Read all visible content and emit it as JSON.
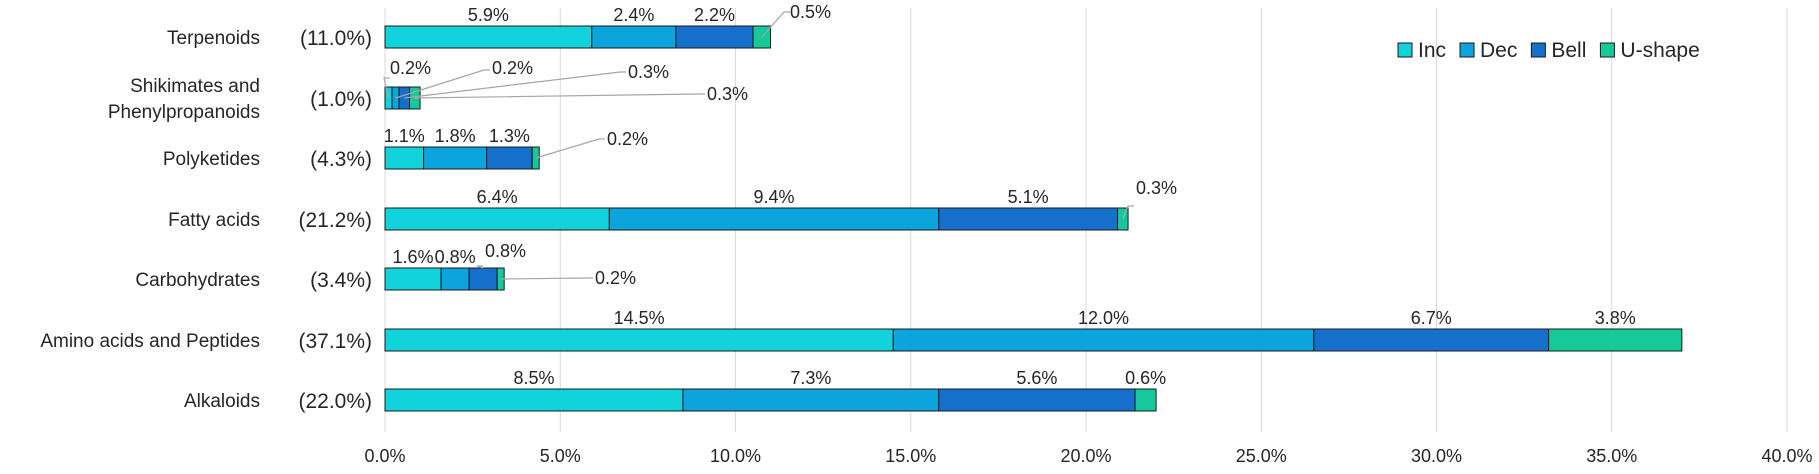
{
  "chart_data": {
    "type": "bar",
    "orientation": "horizontal",
    "stacked": true,
    "xlim": [
      0,
      40
    ],
    "x_ticks": [
      "0.0%",
      "5.0%",
      "10.0%",
      "15.0%",
      "20.0%",
      "25.0%",
      "30.0%",
      "35.0%",
      "40.0%"
    ],
    "grid": true,
    "legend": "top-right",
    "categories": [
      {
        "label": [
          "Terpenoids"
        ],
        "total": "(11.0%)"
      },
      {
        "label": [
          "Shikimates and",
          "Phenylpropanoids"
        ],
        "total": "(1.0%)"
      },
      {
        "label": [
          "Polyketides"
        ],
        "total": "(4.3%)"
      },
      {
        "label": [
          "Fatty acids"
        ],
        "total": "(21.2%)"
      },
      {
        "label": [
          "Carbohydrates"
        ],
        "total": "(3.4%)"
      },
      {
        "label": [
          "Amino acids and Peptides"
        ],
        "total": "(37.1%)"
      },
      {
        "label": [
          "Alkaloids"
        ],
        "total": "(22.0%)"
      }
    ],
    "series": [
      {
        "name": "Inc",
        "color": "#12d2dc",
        "values": [
          5.9,
          0.2,
          1.1,
          6.4,
          1.6,
          14.5,
          8.5
        ],
        "labels": [
          "5.9%",
          "0.2%",
          "1.1%",
          "6.4%",
          "1.6%",
          "14.5%",
          "8.5%"
        ]
      },
      {
        "name": "Dec",
        "color": "#0ba4dc",
        "values": [
          2.4,
          0.2,
          1.8,
          9.4,
          0.8,
          12.0,
          7.3
        ],
        "labels": [
          "2.4%",
          "0.2%",
          "1.8%",
          "9.4%",
          "0.8%",
          "12.0%",
          "7.3%"
        ]
      },
      {
        "name": "Bell",
        "color": "#1570cb",
        "values": [
          2.2,
          0.3,
          1.3,
          5.1,
          0.8,
          6.7,
          5.6
        ],
        "labels": [
          "2.2%",
          "0.3%",
          "1.3%",
          "5.1%",
          "0.8%",
          "6.7%",
          "5.6%"
        ]
      },
      {
        "name": "U-shape",
        "color": "#16c99a",
        "values": [
          0.5,
          0.3,
          0.2,
          0.3,
          0.2,
          3.8,
          0.6
        ],
        "labels": [
          "0.5%",
          "0.3%",
          "0.2%",
          "0.3%",
          "0.2%",
          "3.8%",
          "0.6%"
        ]
      }
    ]
  }
}
